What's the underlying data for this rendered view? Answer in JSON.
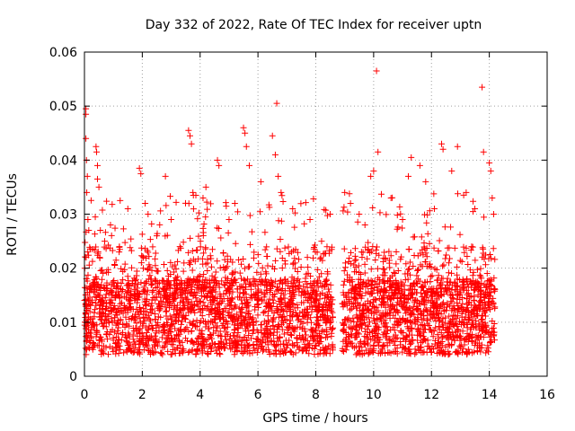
{
  "chart_data": {
    "type": "scatter",
    "title": "Day 332 of 2022, Rate Of TEC Index for receiver uptn",
    "xlabel": "GPS time / hours",
    "ylabel": "ROTI / TECUs",
    "xlim": [
      0,
      16
    ],
    "ylim": [
      0,
      0.06
    ],
    "xticks": [
      0,
      2,
      4,
      6,
      8,
      10,
      12,
      14,
      16
    ],
    "yticks": [
      0,
      0.01,
      0.02,
      0.03,
      0.04,
      0.05,
      0.06
    ],
    "xtick_labels": [
      "0",
      "2",
      "4",
      "6",
      "8",
      "10",
      "12",
      "14",
      "16"
    ],
    "ytick_labels": [
      "0",
      "0.01",
      "0.02",
      "0.03",
      "0.04",
      "0.05",
      "0.06"
    ],
    "grid": true,
    "marker": "+",
    "series_color": "#ff0000",
    "data_range": {
      "x": [
        0.0,
        14.2
      ],
      "gap": [
        8.6,
        8.9
      ]
    },
    "points": [
      [
        0.05,
        0.0495
      ],
      [
        0.05,
        0.0485
      ],
      [
        0.05,
        0.044
      ],
      [
        0.07,
        0.04
      ],
      [
        0.1,
        0.037
      ],
      [
        0.08,
        0.034
      ],
      [
        0.12,
        0.029
      ],
      [
        0.15,
        0.027
      ],
      [
        0.06,
        0.022
      ],
      [
        0.02,
        0.01
      ],
      [
        0.4,
        0.0425
      ],
      [
        0.42,
        0.0415
      ],
      [
        0.45,
        0.039
      ],
      [
        0.45,
        0.0365
      ],
      [
        0.5,
        0.035
      ],
      [
        0.55,
        0.027
      ],
      [
        0.7,
        0.025
      ],
      [
        0.9,
        0.028
      ],
      [
        1.2,
        0.023
      ],
      [
        1.5,
        0.031
      ],
      [
        1.9,
        0.0385
      ],
      [
        1.95,
        0.0375
      ],
      [
        2.1,
        0.032
      ],
      [
        2.2,
        0.03
      ],
      [
        2.5,
        0.026
      ],
      [
        2.8,
        0.037
      ],
      [
        3.0,
        0.029
      ],
      [
        3.3,
        0.024
      ],
      [
        3.6,
        0.0455
      ],
      [
        3.65,
        0.0445
      ],
      [
        3.7,
        0.043
      ],
      [
        3.75,
        0.034
      ],
      [
        4.1,
        0.033
      ],
      [
        4.2,
        0.035
      ],
      [
        4.6,
        0.04
      ],
      [
        4.65,
        0.039
      ],
      [
        5.0,
        0.029
      ],
      [
        5.2,
        0.032
      ],
      [
        5.5,
        0.046
      ],
      [
        5.55,
        0.045
      ],
      [
        5.6,
        0.0425
      ],
      [
        5.7,
        0.039
      ],
      [
        6.1,
        0.036
      ],
      [
        6.5,
        0.0445
      ],
      [
        6.6,
        0.041
      ],
      [
        6.65,
        0.0505
      ],
      [
        6.7,
        0.037
      ],
      [
        6.8,
        0.034
      ],
      [
        7.2,
        0.031
      ],
      [
        7.8,
        0.029
      ],
      [
        8.2,
        0.025
      ],
      [
        8.5,
        0.03
      ],
      [
        9.0,
        0.034
      ],
      [
        9.2,
        0.032
      ],
      [
        9.5,
        0.03
      ],
      [
        9.7,
        0.028
      ],
      [
        9.9,
        0.037
      ],
      [
        10.0,
        0.038
      ],
      [
        10.1,
        0.0565
      ],
      [
        10.15,
        0.0415
      ],
      [
        10.6,
        0.033
      ],
      [
        11.0,
        0.029
      ],
      [
        11.2,
        0.037
      ],
      [
        11.3,
        0.0405
      ],
      [
        11.6,
        0.039
      ],
      [
        11.8,
        0.036
      ],
      [
        12.1,
        0.031
      ],
      [
        12.35,
        0.043
      ],
      [
        12.4,
        0.042
      ],
      [
        12.7,
        0.038
      ],
      [
        12.9,
        0.0425
      ],
      [
        13.2,
        0.034
      ],
      [
        13.5,
        0.031
      ],
      [
        13.75,
        0.0535
      ],
      [
        13.8,
        0.0415
      ],
      [
        14.0,
        0.0395
      ],
      [
        14.05,
        0.038
      ],
      [
        14.1,
        0.033
      ],
      [
        14.15,
        0.03
      ]
    ]
  }
}
